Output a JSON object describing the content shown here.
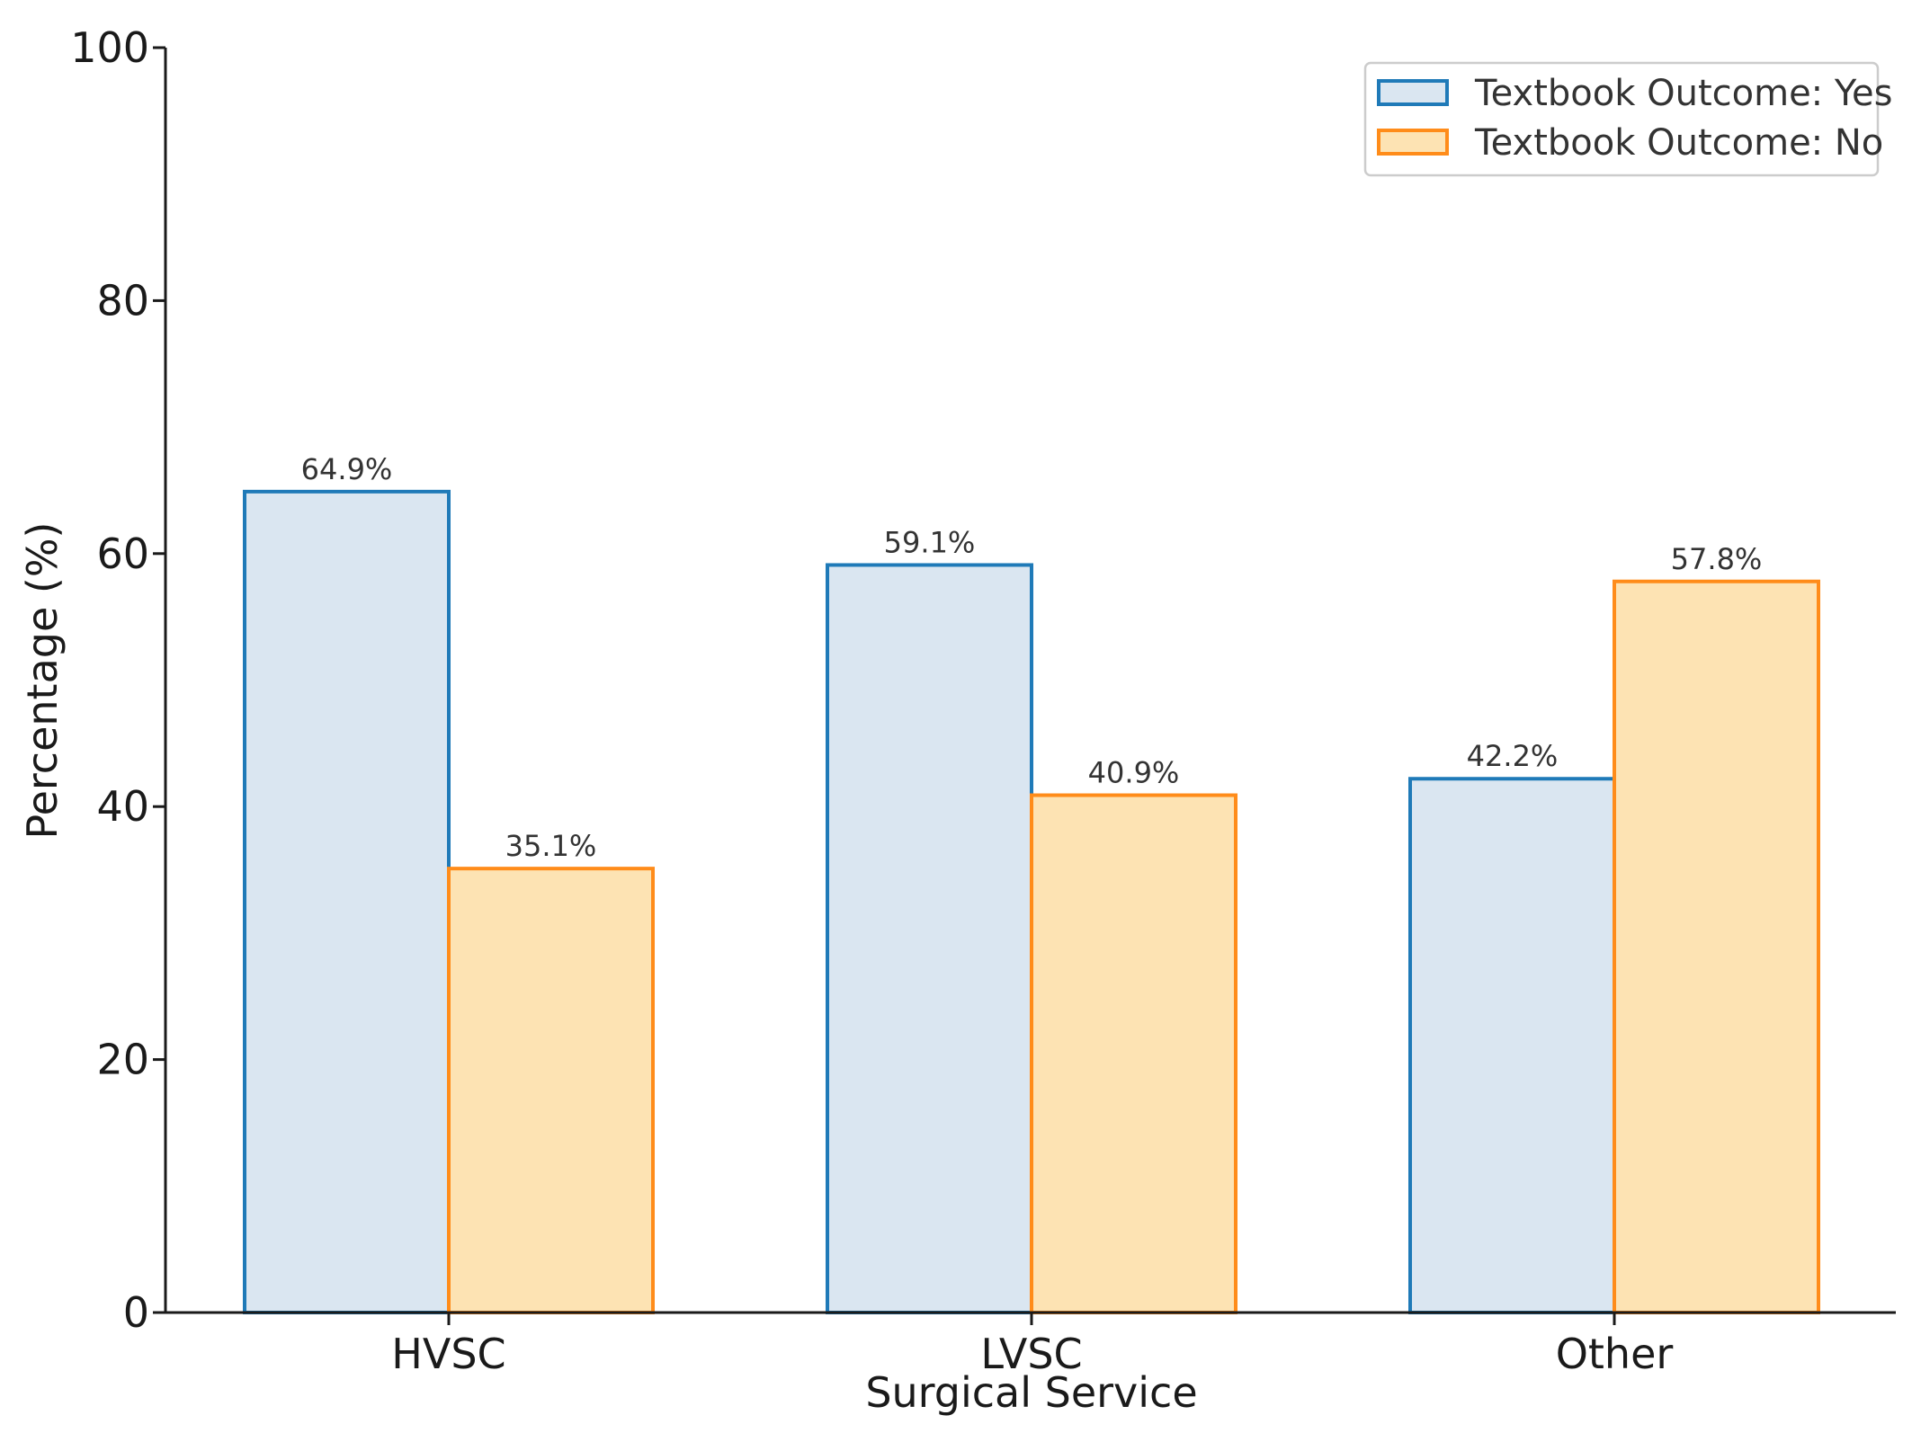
{
  "chart_data": {
    "type": "bar",
    "title": "",
    "xlabel": "Surgical Service",
    "ylabel": "Percentage (%)",
    "categories": [
      "HVSC",
      "LVSC",
      "Other"
    ],
    "ylim": [
      0,
      100
    ],
    "yticks": [
      0,
      20,
      40,
      60,
      80,
      100
    ],
    "grid": false,
    "legend_position": "top-right",
    "series": [
      {
        "name": "Textbook Outcome: Yes",
        "values": [
          64.9,
          59.1,
          42.2
        ],
        "labels": [
          "64.9%",
          "59.1%",
          "42.2%"
        ],
        "fill": "#dae6f1",
        "stroke": "#1f7ab8"
      },
      {
        "name": "Textbook Outcome: No",
        "values": [
          35.1,
          40.9,
          57.8
        ],
        "labels": [
          "35.1%",
          "40.9%",
          "57.8%"
        ],
        "fill": "#fde3b3",
        "stroke": "#ff8c1a"
      }
    ]
  }
}
